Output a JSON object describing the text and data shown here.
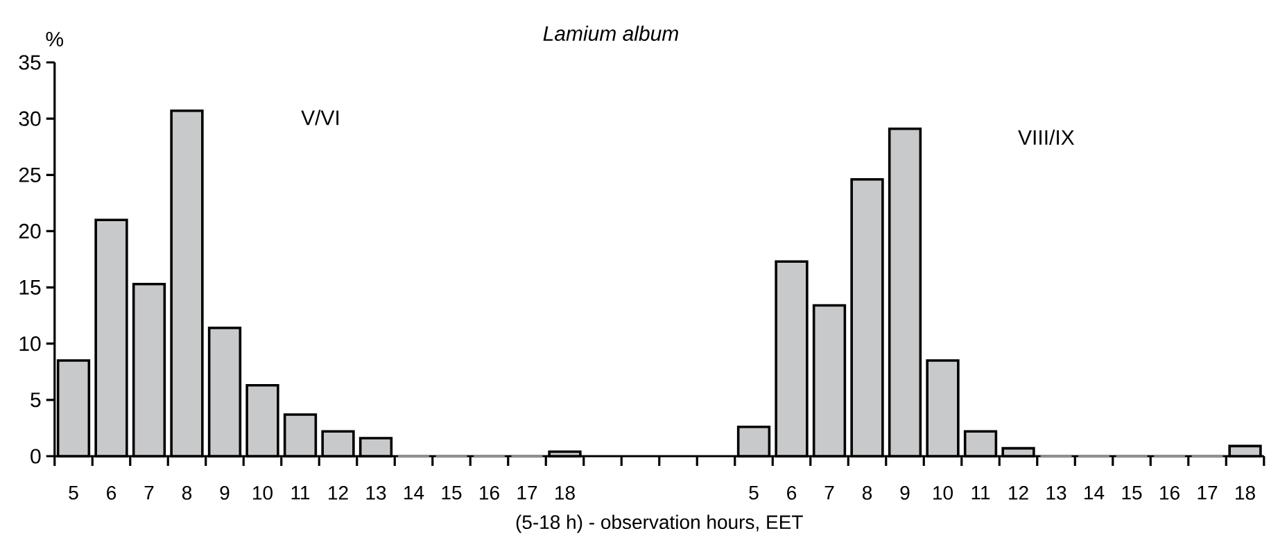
{
  "chart_data": {
    "type": "bar",
    "title": "Lamium album",
    "xlabel": "(5-18 h) - observation hours, EET",
    "ylabel": "%",
    "categories": [
      "5",
      "6",
      "7",
      "8",
      "9",
      "10",
      "11",
      "12",
      "13",
      "14",
      "15",
      "16",
      "17",
      "18",
      null,
      null,
      null,
      null,
      "5",
      "6",
      "7",
      "8",
      "9",
      "10",
      "11",
      "12",
      "13",
      "14",
      "15",
      "16",
      "17",
      "18"
    ],
    "values": [
      8.5,
      21.0,
      15.3,
      30.7,
      11.4,
      6.3,
      3.7,
      2.2,
      1.6,
      0,
      0,
      0,
      0,
      0.4,
      null,
      null,
      null,
      null,
      2.6,
      17.3,
      13.4,
      24.6,
      29.1,
      8.5,
      2.2,
      0.7,
      0,
      0,
      0,
      0,
      0,
      0.9
    ],
    "color": "#c8c9cb",
    "ylim": [
      0,
      35
    ],
    "yticks": [
      0,
      5,
      10,
      15,
      20,
      25,
      30,
      35
    ],
    "annotations": [
      "V/VI",
      "VIII/IX"
    ]
  }
}
